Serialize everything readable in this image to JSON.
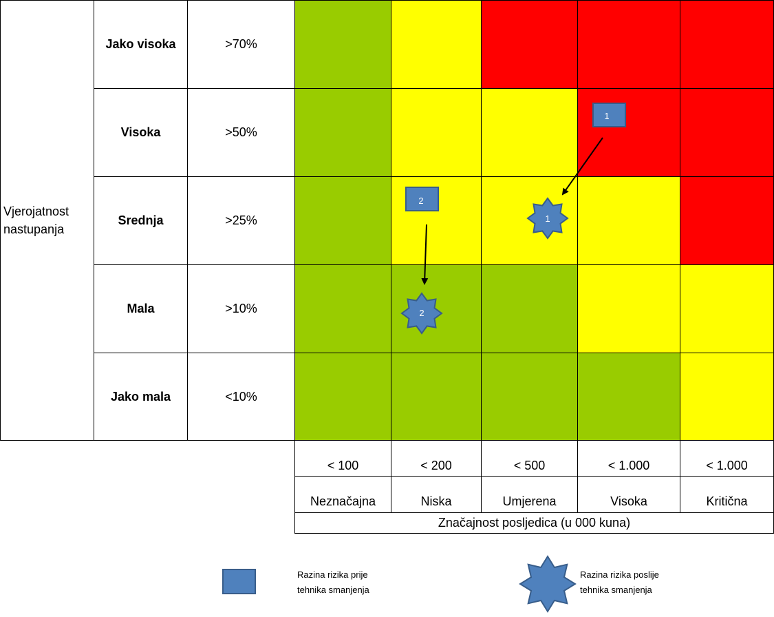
{
  "matrix": {
    "y_axis_title": "Vjerojatnost nastupanja",
    "rows": [
      {
        "label": "Jako visoka",
        "threshold": ">70%",
        "colors": [
          "green",
          "yellow",
          "red",
          "red",
          "red"
        ]
      },
      {
        "label": "Visoka",
        "threshold": ">50%",
        "colors": [
          "green",
          "yellow",
          "yellow",
          "red",
          "red"
        ]
      },
      {
        "label": "Srednja",
        "threshold": ">25%",
        "colors": [
          "green",
          "yellow",
          "yellow",
          "yellow",
          "red"
        ]
      },
      {
        "label": "Mala",
        "threshold": ">10%",
        "colors": [
          "green",
          "green",
          "green",
          "yellow",
          "yellow"
        ]
      },
      {
        "label": "Jako mala",
        "threshold": "<10%",
        "colors": [
          "green",
          "green",
          "green",
          "green",
          "yellow"
        ]
      }
    ],
    "columns": [
      {
        "value": "< 100",
        "name": "Neznačajna"
      },
      {
        "value": "< 200",
        "name": "Niska"
      },
      {
        "value": "< 500",
        "name": "Umjerena"
      },
      {
        "value": "< 1.000",
        "name": "Visoka"
      },
      {
        "value": "< 1.000",
        "name": "Kritična"
      }
    ],
    "x_axis_title": "Značajnost posljedica (u 000 kuna)",
    "colors": {
      "green": "#99cc00",
      "yellow": "#ffff00",
      "red": "#ff0000",
      "marker": "#4f81bd",
      "marker_border": "#385d8a"
    }
  },
  "markers": [
    {
      "id": "1",
      "before": {
        "row": "Visoka",
        "column": "Visoka"
      },
      "after": {
        "row": "Srednja",
        "column": "Umjerena"
      }
    },
    {
      "id": "2",
      "before": {
        "row": "Srednja",
        "column": "Niska"
      },
      "after": {
        "row": "Mala",
        "column": "Niska"
      }
    }
  ],
  "legend": {
    "before_label_line1": "Razina rizika prije",
    "before_label_line2": "tehnika smanjenja",
    "after_label_line1": "Razina rizika poslije",
    "after_label_line2": "tehnika smanjenja"
  }
}
